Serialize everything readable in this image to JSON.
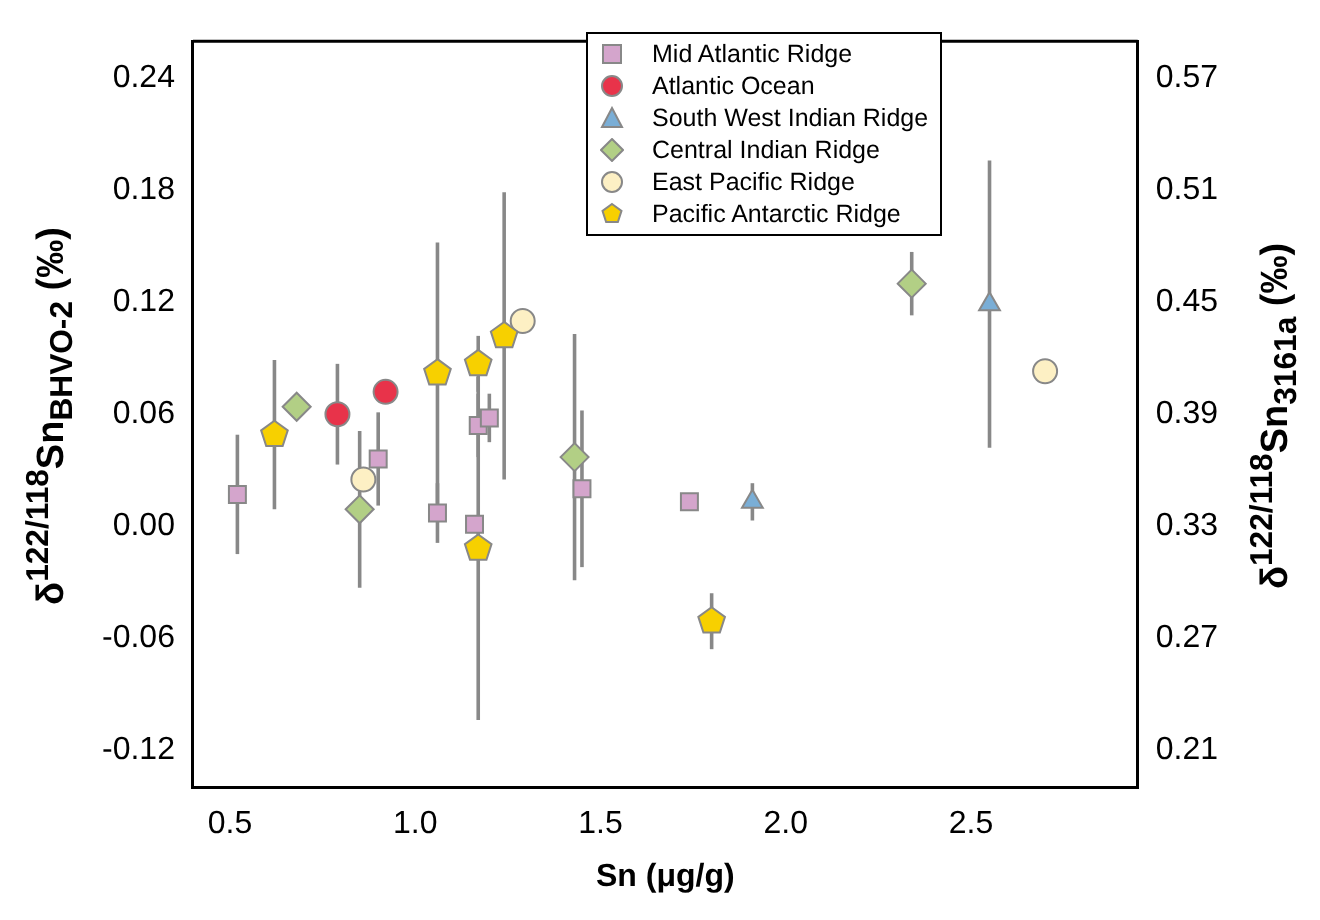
{
  "chart_data": {
    "type": "scatter",
    "xlabel": "Sn (μg/g)",
    "ylabel": "δ$^{122/118}$Sn$_{BHVO-2}$ (‰)",
    "y2label": "δ$^{122/118}$Sn$_{3161a}$ (‰)",
    "xlim": [
      0.4,
      2.95
    ],
    "xticks": [
      {
        "value": 0.5,
        "label": "0.5"
      },
      {
        "value": 1,
        "label": "1.0"
      },
      {
        "value": 1.5,
        "label": "1.5"
      },
      {
        "value": 2,
        "label": "2.0"
      },
      {
        "value": 2.5,
        "label": "2.5"
      }
    ],
    "ylim": [
      -0.14,
      0.26
    ],
    "yticks": [
      {
        "value": -0.12,
        "label": "-0.12"
      },
      {
        "value": -0.06,
        "label": "-0.06"
      },
      {
        "value": 0,
        "label": "0.00"
      },
      {
        "value": 0.06,
        "label": "0.06"
      },
      {
        "value": 0.12,
        "label": "0.12"
      },
      {
        "value": 0.18,
        "label": "0.18"
      },
      {
        "value": 0.24,
        "label": "0.24"
      }
    ],
    "y2lim": [
      0.19,
      0.59
    ],
    "y2ticks": [
      {
        "value": 0.21,
        "label": "0.21"
      },
      {
        "value": 0.27,
        "label": "0.27"
      },
      {
        "value": 0.33,
        "label": "0.33"
      },
      {
        "value": 0.39,
        "label": "0.39"
      },
      {
        "value": 0.45,
        "label": "0.45"
      },
      {
        "value": 0.51,
        "label": "0.51"
      },
      {
        "value": 0.57,
        "label": "0.57"
      }
    ],
    "grid": false,
    "legend": "top",
    "series": [
      {
        "name": "Mid Atlantic Ridge",
        "color": "#d4a5cc",
        "marker": "square",
        "x": [
          0.52,
          0.9,
          1.06,
          1.16,
          1.17,
          1.2,
          1.45,
          1.74
        ],
        "values": [
          0.017,
          0.036,
          0.007,
          0.001,
          0.054,
          0.058,
          0.02,
          0.013
        ],
        "errors": [
          0.032,
          0.025,
          0.016,
          null,
          0.017,
          0.013,
          0.042,
          0.004
        ]
      },
      {
        "name": "Atlantic Ocean",
        "color": "#e8334a",
        "marker": "circle",
        "x": [
          0.79,
          0.92
        ],
        "values": [
          0.06,
          0.072
        ],
        "errors": [
          0.027,
          null
        ]
      },
      {
        "name": "South West Indian Ridge",
        "color": "#7aaed6",
        "marker": "triangle",
        "x": [
          1.91,
          2.55
        ],
        "values": [
          0.013,
          0.119
        ],
        "errors": [
          0.01,
          0.077
        ]
      },
      {
        "name": "Central Indian Ridge",
        "color": "#b2cf85",
        "marker": "diamond",
        "x": [
          0.68,
          0.85,
          1.43,
          2.34
        ],
        "values": [
          0.064,
          0.009,
          0.037,
          0.13
        ],
        "errors": [
          0.005,
          0.042,
          0.066,
          0.017
        ]
      },
      {
        "name": "East Pacific Ridge",
        "color": "#fdf0c4",
        "marker": "circle",
        "x": [
          0.86,
          1.29,
          2.7
        ],
        "values": [
          0.025,
          0.11,
          0.083
        ],
        "errors": [
          0.005,
          0.005,
          0.005
        ]
      },
      {
        "name": "Pacific Antarctic Ridge",
        "color": "#f7d000",
        "x": [
          0.62,
          1.06,
          1.17,
          1.24,
          1.17,
          1.8
        ],
        "values": [
          0.049,
          0.082,
          0.087,
          0.102,
          -0.012,
          -0.051
        ],
        "errors": [
          0.04,
          0.07,
          0.015,
          0.077,
          0.092,
          0.015
        ]
      }
    ]
  }
}
